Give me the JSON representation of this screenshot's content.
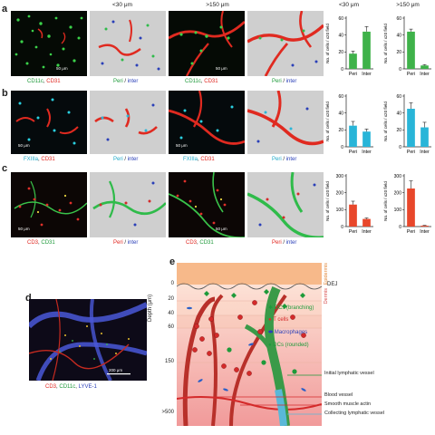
{
  "panel_letters": {
    "a": "a",
    "b": "b",
    "c": "c",
    "d": "d",
    "e": "e"
  },
  "column_headers": {
    "lt30": "<30 μm",
    "gt150": ">150 μm",
    "chart_lt30": "<30 μm",
    "chart_gt150": ">150 μm"
  },
  "scale_bar": "50 μm",
  "scale_bar_d": "200 μm",
  "captions": {
    "a1_a": "CD11c",
    "a1_b": "CD31",
    "a2_a": "Peri",
    "a2_sep": " / ",
    "a2_b": "inter",
    "b1_a": "FXIIIa",
    "b1_b": "CD31",
    "b2_a": "Peri",
    "b2_sep": " / ",
    "b2_b": "inter",
    "c1_a": "CD3",
    "c1_b": "CD31",
    "c2_a": "Peri",
    "c2_sep": " / ",
    "c2_b": "inter",
    "d_a": "CD3",
    "d_b": "CD11c",
    "d_c": "LYVE-1",
    "comma": ","
  },
  "chart_data": [
    {
      "type": "bar",
      "panel": "a",
      "depth": "<30 μm",
      "categories": [
        "Peri",
        "Inter"
      ],
      "values": [
        18,
        44
      ],
      "errors": [
        3,
        6
      ],
      "ylim": [
        0,
        60
      ],
      "yticks": [
        0,
        20,
        40,
        60
      ],
      "ylabel": "No. of cells / x20 field",
      "color": "#3fb24a"
    },
    {
      "type": "bar",
      "panel": "a",
      "depth": ">150 μm",
      "categories": [
        "Peri",
        "Inter"
      ],
      "values": [
        44,
        4
      ],
      "errors": [
        3,
        1
      ],
      "ylim": [
        0,
        60
      ],
      "yticks": [
        0,
        20,
        40,
        60
      ],
      "ylabel": "No. of cells / x20 field",
      "color": "#3fb24a"
    },
    {
      "type": "bar",
      "panel": "b",
      "depth": "<30 μm",
      "categories": [
        "Peri",
        "Inter"
      ],
      "values": [
        25,
        18
      ],
      "errors": [
        5,
        3
      ],
      "ylim": [
        0,
        60
      ],
      "yticks": [
        0,
        20,
        40,
        60
      ],
      "ylabel": "No. of cells / x20 field",
      "color": "#29b5d8"
    },
    {
      "type": "bar",
      "panel": "b",
      "depth": ">150 μm",
      "categories": [
        "Peri",
        "Inter"
      ],
      "values": [
        45,
        23
      ],
      "errors": [
        7,
        6
      ],
      "ylim": [
        0,
        60
      ],
      "yticks": [
        0,
        20,
        40,
        60
      ],
      "ylabel": "No. of cells / x20 field",
      "color": "#29b5d8"
    },
    {
      "type": "bar",
      "panel": "c",
      "depth": "<30 μm",
      "categories": [
        "Peri",
        "Inter"
      ],
      "values": [
        130,
        45
      ],
      "errors": [
        20,
        6
      ],
      "ylim": [
        0,
        300
      ],
      "yticks": [
        0,
        100,
        200,
        300
      ],
      "ylabel": "No. of cells / x20 field",
      "color": "#e8472b"
    },
    {
      "type": "bar",
      "panel": "c",
      "depth": ">150 μm",
      "categories": [
        "Peri",
        "Inter"
      ],
      "values": [
        225,
        5
      ],
      "errors": [
        45,
        2
      ],
      "ylim": [
        0,
        300
      ],
      "yticks": [
        0,
        100,
        200,
        300
      ],
      "ylabel": "No. of cells / x20 field",
      "color": "#e8472b"
    }
  ],
  "diagram": {
    "epidermis_label": "Epidermis",
    "dermis_label": "Dermis",
    "dej_label": "DEJ",
    "depth_label": "Depth (μm)",
    "depth_ticks": [
      "0",
      "20",
      "40",
      "60",
      "150",
      ">500"
    ],
    "legend": [
      {
        "label": "DCs (branching)",
        "color": "#1e9a3a"
      },
      {
        "label": "T cells",
        "color": "#d42a2a"
      },
      {
        "label": "Macrophages",
        "color": "#2a3fb8"
      },
      {
        "label": "DCs (rounded)",
        "color": "#1e9a3a"
      }
    ],
    "annotations": [
      {
        "label": "Initial lymphatic vessel",
        "color": "#1e9a3a"
      },
      {
        "label": "Blood vessel",
        "color": "#d42a2a"
      },
      {
        "label": "Smooth muscle actin",
        "color": "#d42a2a"
      },
      {
        "label": "Collecting lymphatic vessel",
        "color": "#5ab8d8"
      }
    ]
  }
}
